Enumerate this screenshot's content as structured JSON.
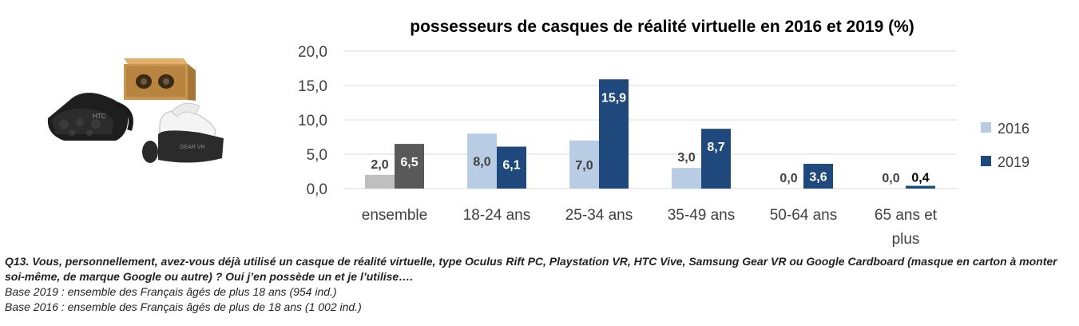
{
  "chart_data": {
    "type": "bar",
    "title": "possesseurs de casques de réalité virtuelle en 2016 et 2019 (%)",
    "categories": [
      [
        "ensemble"
      ],
      [
        "18-24 ans"
      ],
      [
        "25-34 ans"
      ],
      [
        "35-49 ans"
      ],
      [
        "50-64 ans"
      ],
      [
        "65 ans et",
        "plus"
      ]
    ],
    "series": [
      {
        "name": "2016",
        "values": [
          2.0,
          8.0,
          7.0,
          3.0,
          0.0,
          0.0
        ],
        "labels": [
          "2,0",
          "8,0",
          "7,0",
          "3,0",
          "0,0",
          "0,0"
        ],
        "color": "#b8cce4"
      },
      {
        "name": "2019",
        "values": [
          6.5,
          6.1,
          15.9,
          8.7,
          3.6,
          0.4
        ],
        "labels": [
          "6,5",
          "6,1",
          "15,9",
          "8,7",
          "3,6",
          "0,4"
        ],
        "color": "#1f497d"
      }
    ],
    "first_category_colors": [
      "#bfbfbf",
      "#595959"
    ],
    "yticks": [
      "0,0",
      "5,0",
      "10,0",
      "15,0",
      "20,0"
    ],
    "ylim": [
      0,
      20
    ],
    "grid": true,
    "legend": "right"
  },
  "footnotes": {
    "question": "Q13. Vous, personnellement, avez-vous déjà utilisé un casque de réalité virtuelle, type Oculus Rift PC, Playstation VR, HTC Vive, Samsung Gear VR ou Google Cardboard (masque en carton à monter soi-même, de marque Google ou autre) ? Oui j’en possède un et je l’utilise….",
    "base_2019": "Base 2019 : ensemble des Français âgés de plus 18 ans (954 ind.)",
    "base_2016": "Base 2016 : ensemble des Français âgés de plus de 18 ans (1 002 ind.)"
  },
  "illustration": {
    "icon": "vr-headsets-image",
    "headset_brands": [
      "HTC",
      "GEAR VR"
    ]
  }
}
